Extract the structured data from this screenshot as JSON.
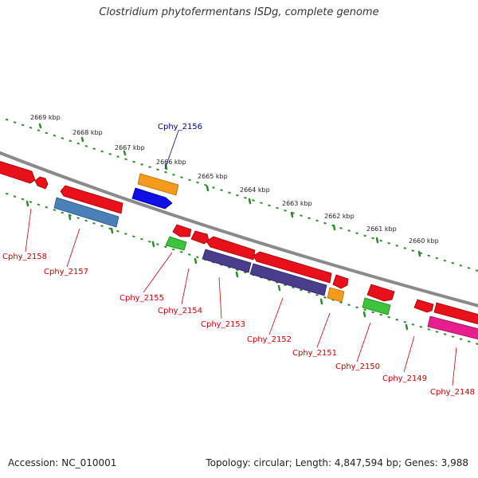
{
  "title": "Clostridium phytofermentans ISDg, complete genome",
  "footer": {
    "accession": "Accession: NC_010001",
    "topology": "Topology: circular; Length: 4,847,594 bp; Genes: 3,988"
  },
  "kbp_labels": [
    "2669 kbp",
    "2668 kbp",
    "2667 kbp",
    "2666 kbp",
    "2665 kbp",
    "2664 kbp",
    "2663 kbp",
    "2662 kbp",
    "2661 kbp",
    "2660 kbp"
  ],
  "gene_labels": [
    "Cphy_2156",
    "Cphy_2158",
    "Cphy_2157",
    "Cphy_2155",
    "Cphy_2154",
    "Cphy_2153",
    "Cphy_2152",
    "Cphy_2151",
    "Cphy_2150",
    "Cphy_2149",
    "Cphy_2148"
  ],
  "colors": {
    "backbone": "#8a8a8a",
    "tick": "#2e8b2e",
    "label_minus": "#cc0000",
    "label_plus": "#000099",
    "red": "#e8101a",
    "orange": "#f59a1a",
    "blue": "#1010e6",
    "steelblue": "#4a7fb8",
    "purple": "#4a3e8c",
    "green": "#3cc43c",
    "magenta": "#e81e8c"
  }
}
